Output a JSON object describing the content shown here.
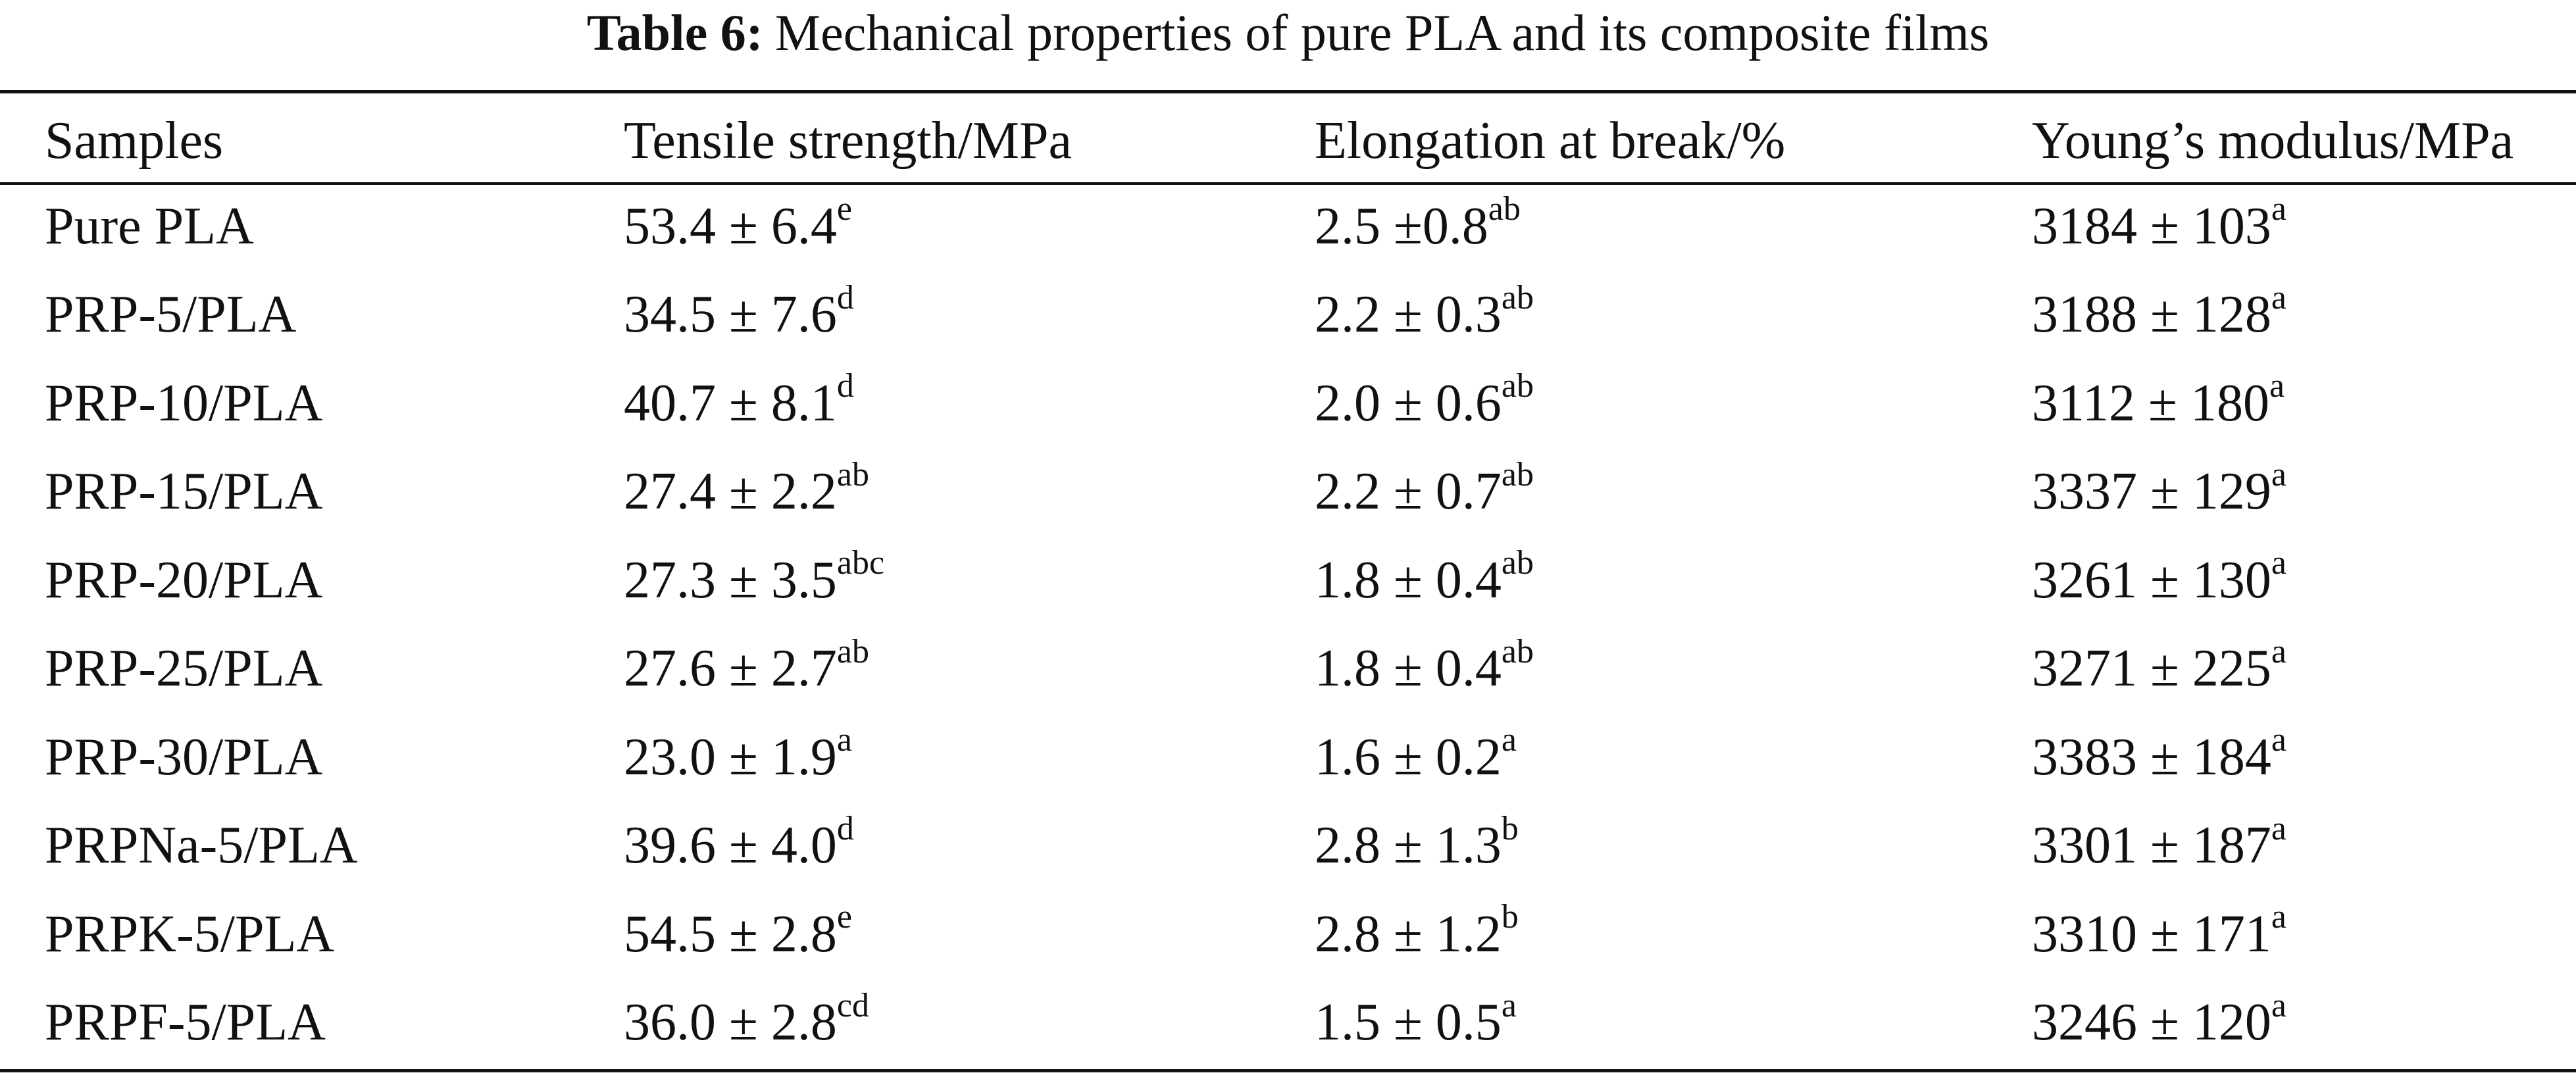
{
  "caption": {
    "label": "Table 6:",
    "text": "Mechanical properties of pure PLA and its composite films"
  },
  "table": {
    "headers": [
      "Samples",
      "Tensile strength/MPa",
      "Elongation at break/%",
      "Young’s modulus/MPa"
    ],
    "rows": [
      {
        "sample": "Pure PLA",
        "tensile": "53.4 ± 6.4",
        "tensile_sup": "e",
        "elong": "2.5 ±0.8",
        "elong_sup": "ab",
        "young": "3184 ± 103",
        "young_sup": "a"
      },
      {
        "sample": "PRP-5/PLA",
        "tensile": "34.5 ± 7.6",
        "tensile_sup": "d",
        "elong": "2.2 ± 0.3",
        "elong_sup": "ab",
        "young": "3188 ± 128",
        "young_sup": "a"
      },
      {
        "sample": "PRP-10/PLA",
        "tensile": "40.7 ± 8.1",
        "tensile_sup": "d",
        "elong": "2.0 ± 0.6",
        "elong_sup": "ab",
        "young": "3112 ± 180",
        "young_sup": "a"
      },
      {
        "sample": "PRP-15/PLA",
        "tensile": "27.4 ± 2.2",
        "tensile_sup": "ab",
        "elong": "2.2 ± 0.7",
        "elong_sup": "ab",
        "young": "3337 ± 129",
        "young_sup": "a"
      },
      {
        "sample": "PRP-20/PLA",
        "tensile": "27.3 ± 3.5",
        "tensile_sup": "abc",
        "elong": "1.8 ± 0.4",
        "elong_sup": "ab",
        "young": "3261 ± 130",
        "young_sup": "a"
      },
      {
        "sample": "PRP-25/PLA",
        "tensile": "27.6 ± 2.7",
        "tensile_sup": "ab",
        "elong": "1.8 ± 0.4",
        "elong_sup": "ab",
        "young": "3271 ± 225",
        "young_sup": "a"
      },
      {
        "sample": "PRP-30/PLA",
        "tensile": "23.0 ± 1.9",
        "tensile_sup": "a",
        "elong": "1.6 ± 0.2",
        "elong_sup": "a",
        "young": "3383 ± 184",
        "young_sup": "a"
      },
      {
        "sample": "PRPNa-5/PLA",
        "tensile": "39.6 ± 4.0",
        "tensile_sup": "d",
        "elong": "2.8 ± 1.3",
        "elong_sup": "b",
        "young": "3301 ± 187",
        "young_sup": "a"
      },
      {
        "sample": "PRPK-5/PLA",
        "tensile": "54.5 ± 2.8",
        "tensile_sup": "e",
        "elong": "2.8 ± 1.2",
        "elong_sup": "b",
        "young": "3310 ± 171",
        "young_sup": "a"
      },
      {
        "sample": "PRPF-5/PLA",
        "tensile": "36.0 ± 2.8",
        "tensile_sup": "cd",
        "elong": "1.5 ± 0.5",
        "elong_sup": "a",
        "young": "3246 ± 120",
        "young_sup": "a"
      }
    ]
  }
}
